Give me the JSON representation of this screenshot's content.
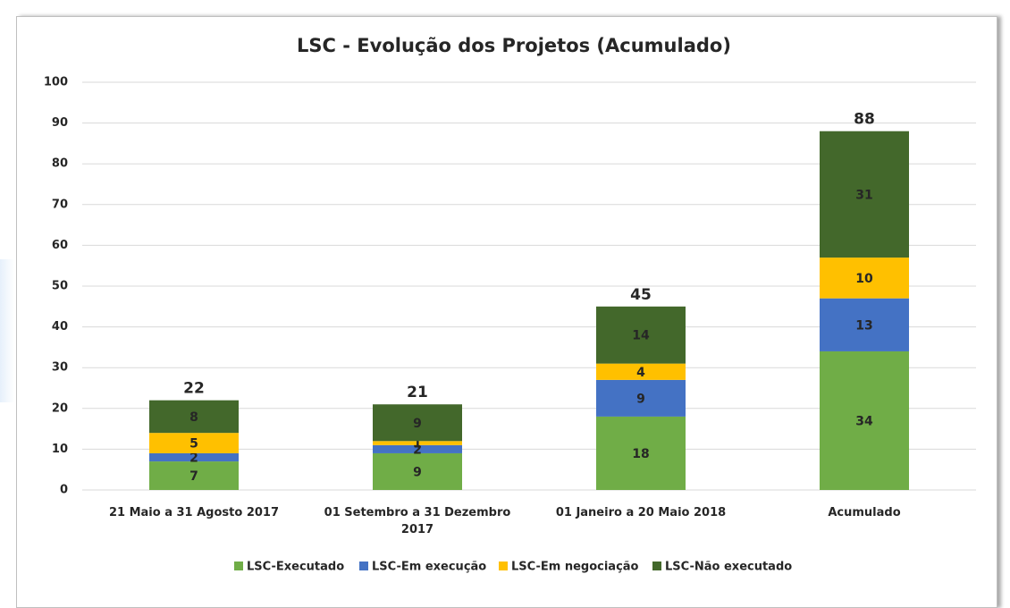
{
  "chart_data": {
    "type": "stacked_bar",
    "title": "LSC - Evolução dos Projetos (Acumulado)",
    "categories": [
      "21 Maio a 31 Agosto 2017",
      "01 Setembro a 31 Dezembro 2017",
      "01 Janeiro a 20 Maio 2018",
      "Acumulado"
    ],
    "series": [
      {
        "name": "LSC-Executado",
        "color": "#70ad47",
        "values": [
          7,
          9,
          18,
          34
        ]
      },
      {
        "name": "LSC-Em execução",
        "color": "#4472c4",
        "values": [
          2,
          2,
          9,
          13
        ]
      },
      {
        "name": "LSC-Em negociação",
        "color": "#ffc000",
        "values": [
          5,
          1,
          4,
          10
        ]
      },
      {
        "name": "LSC-Não executado",
        "color": "#43682b",
        "values": [
          8,
          9,
          14,
          31
        ]
      }
    ],
    "totals": [
      22,
      21,
      45,
      88
    ],
    "ylim": [
      0,
      100
    ],
    "yticks": [
      0,
      10,
      20,
      30,
      40,
      50,
      60,
      70,
      80,
      90,
      100
    ],
    "grid": true
  }
}
